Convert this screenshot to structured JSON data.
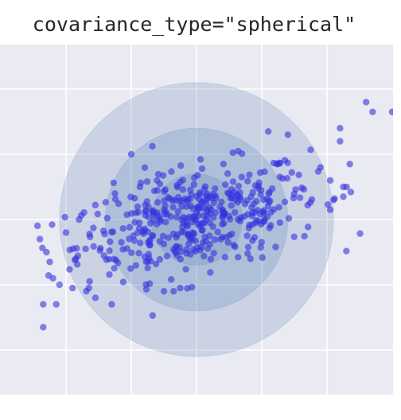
{
  "chart_data": {
    "type": "scatter",
    "title": "covariance_type=\"spherical\"",
    "xlabel": "",
    "ylabel": "",
    "xlim": [
      -3,
      3
    ],
    "ylim": [
      -3,
      3
    ],
    "grid": true,
    "colors": {
      "background": "#eaeaf2",
      "grid": "#ffffff",
      "points": "#3333dd",
      "ellipse": "#4c72b0"
    },
    "ellipses": [
      {
        "cx": 0.0,
        "cy": 0.0,
        "r": 2.1
      },
      {
        "cx": 0.0,
        "cy": 0.0,
        "r": 1.4
      },
      {
        "cx": 0.0,
        "cy": 0.0,
        "r": 0.7
      }
    ],
    "outliers": [
      [
        -2.4,
        -0.3
      ],
      [
        -2.3,
        -0.5
      ],
      [
        -2.25,
        -0.65
      ],
      [
        -2.2,
        -0.9
      ],
      [
        -2.1,
        -1.0
      ],
      [
        -2.0,
        -0.2
      ],
      [
        -1.9,
        -1.05
      ],
      [
        -1.85,
        -0.6
      ],
      [
        -1.8,
        0.0
      ],
      [
        -1.7,
        -0.45
      ],
      [
        -2.15,
        -1.3
      ],
      [
        -1.65,
        -1.05
      ],
      [
        -1.55,
        -1.2
      ],
      [
        -1.3,
        -1.3
      ],
      [
        -1.25,
        0.4
      ],
      [
        -2.35,
        -1.3
      ],
      [
        -2.35,
        -1.65
      ],
      [
        -1.0,
        1.0
      ],
      [
        -0.5,
        -1.1
      ],
      [
        -0.35,
        -1.1
      ],
      [
        -0.25,
        -1.05
      ],
      [
        1.1,
        1.35
      ],
      [
        1.4,
        1.3
      ],
      [
        2.2,
        1.4
      ],
      [
        2.35,
        0.85
      ],
      [
        2.3,
        0.5
      ],
      [
        2.25,
        0.35
      ],
      [
        2.1,
        0.3
      ],
      [
        2.05,
        0.15
      ],
      [
        2.25,
        0.5
      ],
      [
        1.9,
        0.8
      ],
      [
        2.05,
        0.6
      ],
      [
        2.2,
        1.2
      ],
      [
        2.6,
        1.8
      ],
      [
        2.7,
        1.65
      ],
      [
        3.0,
        1.65
      ],
      [
        -0.5,
        0.15
      ],
      [
        -0.9,
        -0.2
      ],
      [
        -0.6,
        0.45
      ],
      [
        0.0,
        0.1
      ],
      [
        0.4,
        0.15
      ],
      [
        0.2,
        -0.25
      ],
      [
        -0.1,
        -0.3
      ],
      [
        0.6,
        0.3
      ]
    ]
  }
}
